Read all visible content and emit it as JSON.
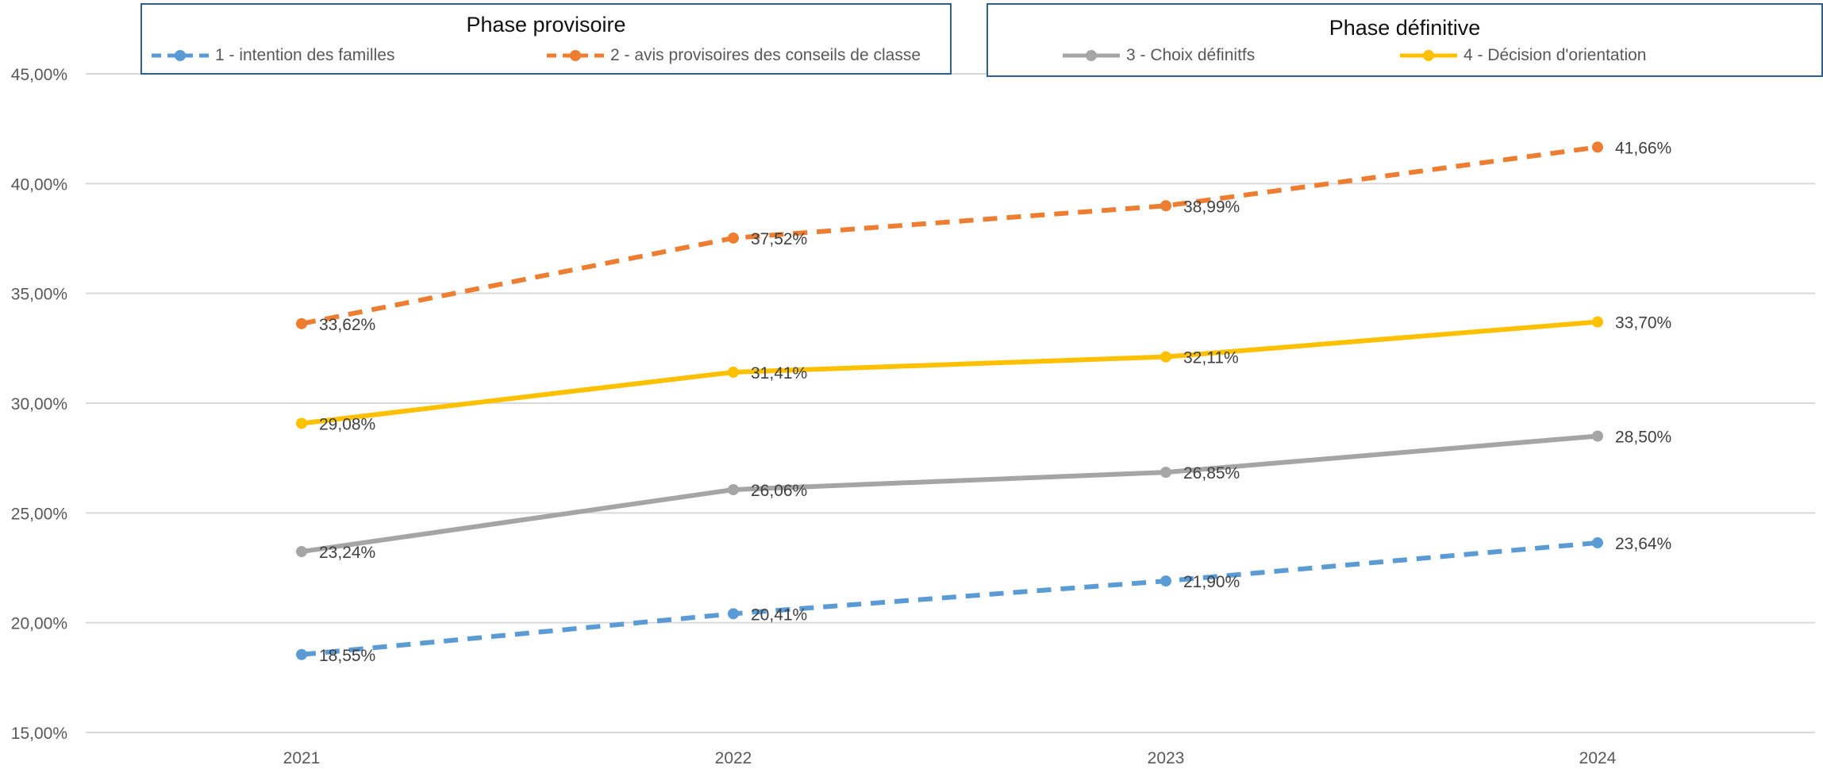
{
  "chart_data": {
    "type": "line",
    "title": "",
    "xlabel": "",
    "ylabel": "",
    "categories": [
      "2021",
      "2022",
      "2023",
      "2024"
    ],
    "ylim": [
      15,
      45
    ],
    "yticks": [
      "15,00%",
      "20,00%",
      "25,00%",
      "30,00%",
      "35,00%",
      "40,00%",
      "45,00%"
    ],
    "grid": true,
    "series": [
      {
        "name": "1 - intention des familles",
        "values": [
          18.55,
          20.41,
          21.9,
          23.64
        ],
        "labels": [
          "18,55%",
          "20,41%",
          "21,90%",
          "23,64%"
        ],
        "color": "#5b9bd5",
        "dashed": true
      },
      {
        "name": "2 - avis provisoires des conseils de classe",
        "values": [
          33.62,
          37.52,
          38.99,
          41.66
        ],
        "labels": [
          "33,62%",
          "37,52%",
          "38,99%",
          "41,66%"
        ],
        "color": "#ed7d31",
        "dashed": true
      },
      {
        "name": "3 - Choix définitfs",
        "values": [
          23.24,
          26.06,
          26.85,
          28.5
        ],
        "labels": [
          "23,24%",
          "26,06%",
          "26,85%",
          "28,50%"
        ],
        "color": "#a5a5a5",
        "dashed": false
      },
      {
        "name": "4 - Décision d'orientation",
        "values": [
          29.08,
          31.41,
          32.11,
          33.7
        ],
        "labels": [
          "29,08%",
          "31,41%",
          "32,11%",
          "33,70%"
        ],
        "color": "#ffc000",
        "dashed": false
      }
    ]
  },
  "legend": {
    "group_provisoire_title": "Phase provisoire",
    "group_definitive_title": "Phase définitive",
    "placement": "top"
  }
}
